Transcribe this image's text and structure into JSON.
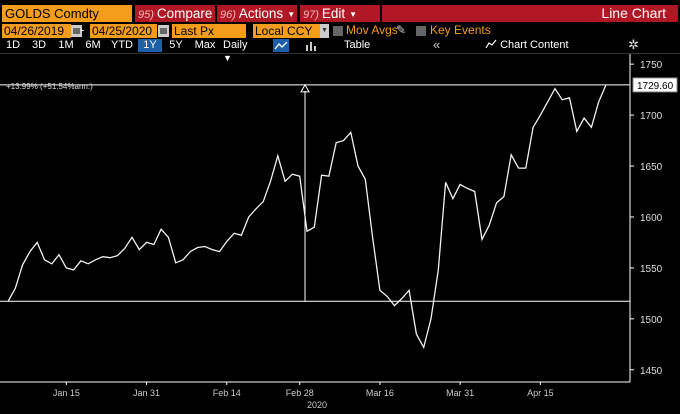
{
  "toolbar": {
    "ticker": "GOLDS Comdty",
    "compare": {
      "num": "95)",
      "label": "Compare"
    },
    "actions": {
      "num": "96)",
      "label": "Actions",
      "arrow": "▼"
    },
    "edit": {
      "num": "97)",
      "label": "Edit",
      "arrow": "▼"
    },
    "view_title": "Line Chart"
  },
  "settings": {
    "start_date": "04/26/2019",
    "end_date": "04/25/2020",
    "date_separator": "-",
    "field": "Last Px",
    "currency": "Local CCY",
    "mov_avgs": "Mov Avgs",
    "key_events": "Key Events"
  },
  "ranges": {
    "items": [
      "1D",
      "3D",
      "1M",
      "6M",
      "YTD",
      "1Y",
      "5Y",
      "Max"
    ],
    "active": "1Y",
    "frequency": "Daily",
    "table": "Table",
    "back": "«",
    "chart_content": "Chart Content",
    "gear": "✲"
  },
  "annotation": "+13.99% (+51.54%ann.)",
  "year_label": "2020",
  "last_price_label": "1729.60",
  "colors": {
    "accent_orange": "#f39d1a",
    "toolbar_red": "#b01825",
    "active_blue": "#1d5fa8"
  },
  "chart_data": {
    "type": "line",
    "x_tick_labels": [
      "Jan 15",
      "Jan 31",
      "Feb 14",
      "Feb 28",
      "Mar 16",
      "Mar 31",
      "Apr 15"
    ],
    "y_ticks": [
      1450,
      1500,
      1550,
      1600,
      1650,
      1700,
      1750
    ],
    "ylim": [
      1438,
      1758
    ],
    "reference_lines": [
      1517.3,
      1729.6
    ],
    "values": [
      1517,
      1530,
      1553,
      1566,
      1575,
      1558,
      1554,
      1563,
      1550,
      1548,
      1557,
      1554,
      1558,
      1561,
      1560,
      1562,
      1569,
      1580,
      1568,
      1575,
      1573,
      1588,
      1580,
      1555,
      1558,
      1566,
      1570,
      1571,
      1568,
      1566,
      1576,
      1584,
      1582,
      1600,
      1608,
      1615,
      1635,
      1660,
      1635,
      1642,
      1640,
      1586,
      1590,
      1641,
      1640,
      1673,
      1675,
      1683,
      1650,
      1637,
      1580,
      1528,
      1522,
      1513,
      1520,
      1528,
      1485,
      1472,
      1500,
      1548,
      1634,
      1618,
      1632,
      1628,
      1625,
      1578,
      1592,
      1614,
      1620,
      1661,
      1648,
      1648,
      1688,
      1700,
      1713,
      1726,
      1715,
      1717,
      1684,
      1697,
      1688,
      1713,
      1729.6
    ]
  }
}
